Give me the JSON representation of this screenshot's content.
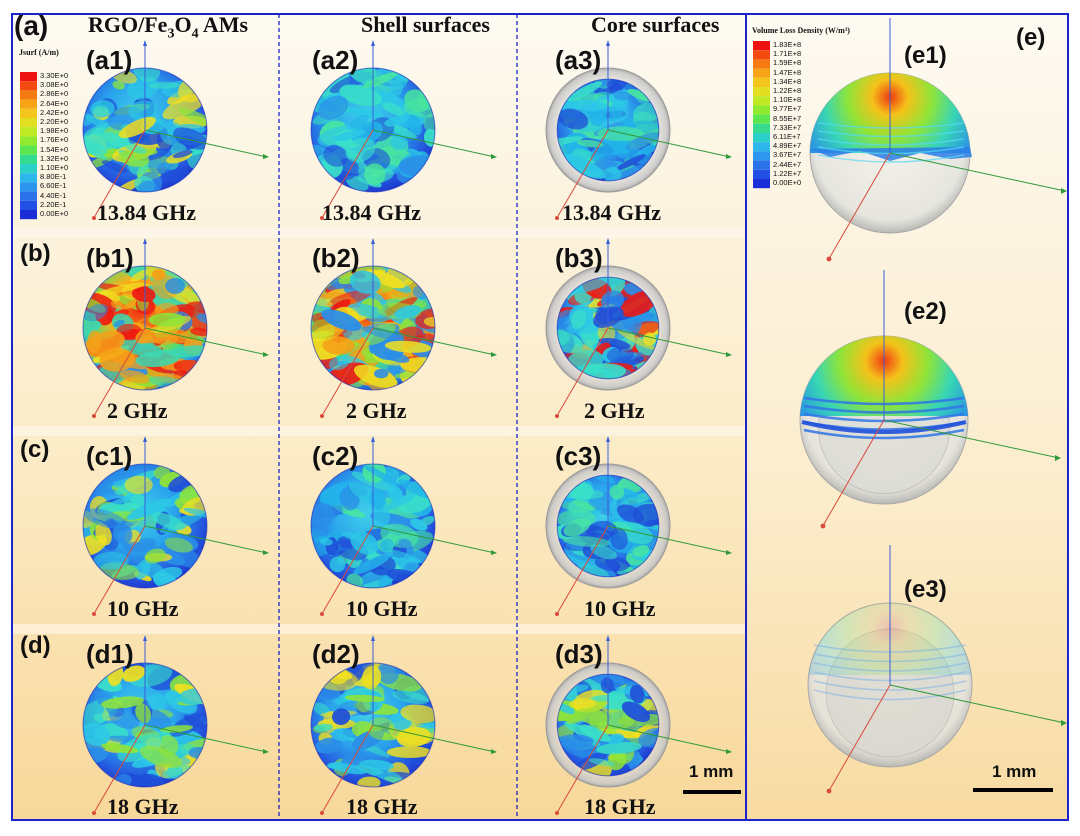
{
  "panel_a_label": "(a)",
  "panel_e_label": "(e)",
  "column_headers": {
    "c1_prefix": "RGO/Fe",
    "c1_sub1": "3",
    "c1_mid": "O",
    "c1_sub2": "4",
    "c1_suffix": " AMs",
    "c2": "Shell surfaces",
    "c3": "Core surfaces"
  },
  "row_labels": [
    "(b)",
    "(c)",
    "(d)"
  ],
  "cells": [
    {
      "label": "(a1)",
      "freq": "13.84 GHz"
    },
    {
      "label": "(a2)",
      "freq": "13.84 GHz"
    },
    {
      "label": "(a3)",
      "freq": "13.84 GHz"
    },
    {
      "label": "(b1)",
      "freq": "2 GHz"
    },
    {
      "label": "(b2)",
      "freq": "2 GHz"
    },
    {
      "label": "(b3)",
      "freq": "2 GHz"
    },
    {
      "label": "(c1)",
      "freq": "10 GHz"
    },
    {
      "label": "(c2)",
      "freq": "10 GHz"
    },
    {
      "label": "(c3)",
      "freq": "10 GHz"
    },
    {
      "label": "(d1)",
      "freq": "18 GHz"
    },
    {
      "label": "(d2)",
      "freq": "18 GHz"
    },
    {
      "label": "(d3)",
      "freq": "18 GHz"
    }
  ],
  "e_labels": [
    "(e1)",
    "(e2)",
    "(e3)"
  ],
  "legend_jsurf": {
    "title": "Jsurf (A/m)",
    "values": [
      "3.30E+0",
      "3.08E+0",
      "2.86E+0",
      "2.64E+0",
      "2.42E+0",
      "2.20E+0",
      "1.98E+0",
      "1.76E+0",
      "1.54E+0",
      "1.32E+0",
      "1.10E+0",
      "8.80E-1",
      "6.60E-1",
      "4.40E-1",
      "2.20E-1",
      "0.00E+0"
    ],
    "colors": [
      "#ee1111",
      "#f34a10",
      "#f57b12",
      "#f7a416",
      "#f2c61c",
      "#e2de20",
      "#c0ea24",
      "#8fea30",
      "#5ce650",
      "#35dc90",
      "#2bd0c8",
      "#2cb8ea",
      "#2d96ee",
      "#2a72ea",
      "#2250e4",
      "#1a2ed8"
    ]
  },
  "legend_volume": {
    "title": "Volume Loss Density (W/m³)",
    "values": [
      "1.83E+8",
      "1.71E+8",
      "1.59E+8",
      "1.47E+8",
      "1.34E+8",
      "1.22E+8",
      "1.10E+8",
      "9.77E+7",
      "8.55E+7",
      "7.33E+7",
      "6.11E+7",
      "4.89E+7",
      "3.67E+7",
      "2.44E+7",
      "1.22E+7",
      "0.00E+0"
    ],
    "colors": [
      "#ee1111",
      "#f34a10",
      "#f57b12",
      "#f7a416",
      "#f2c61c",
      "#e2de20",
      "#c0ea24",
      "#8fea30",
      "#5ce650",
      "#35dc90",
      "#2bd0c8",
      "#2cb8ea",
      "#2d96ee",
      "#2a72ea",
      "#2250e4",
      "#1a2ed8"
    ]
  },
  "scale_left": "1 mm",
  "scale_right": "1 mm",
  "colors": {
    "frame": "#1a24c8",
    "bg_top": "#fdfaf2",
    "bg_bottom": "#f9dca0",
    "axis_z": "#3a5fd8",
    "axis_y": "#2f9a3a",
    "axis_x": "#d84a3a"
  }
}
